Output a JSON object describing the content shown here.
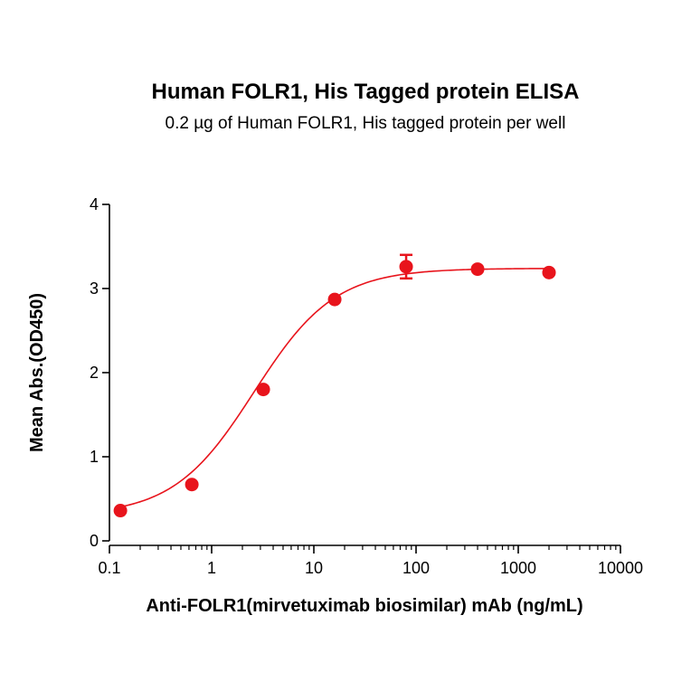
{
  "chart_data": {
    "type": "scatter",
    "title": "Human FOLR1, His Tagged protein ELISA",
    "subtitle": "0.2 µg of Human FOLR1, His tagged protein per well",
    "xlabel": "Anti-FOLR1(mirvetuximab biosimilar) mAb (ng/mL)",
    "ylabel": "Mean Abs.(OD450)",
    "x_scale": "log",
    "xlim": [
      0.1,
      10000
    ],
    "ylim": [
      0,
      4
    ],
    "x_ticks": [
      0.1,
      1,
      10,
      100,
      1000,
      10000
    ],
    "x_tick_labels": [
      "0.1",
      "1",
      "10",
      "100",
      "1000",
      "10000"
    ],
    "y_ticks": [
      0,
      1,
      2,
      3,
      4
    ],
    "y_tick_labels": [
      "0",
      "1",
      "2",
      "3",
      "4"
    ],
    "grid": false,
    "legend": "none",
    "color": "#e8141c",
    "series": [
      {
        "x": [
          0.128,
          0.64,
          3.2,
          16,
          80,
          400,
          2000
        ],
        "y": [
          0.36,
          0.67,
          1.8,
          2.87,
          3.26,
          3.23,
          3.19
        ],
        "error": [
          0.0,
          0.0,
          0.0,
          0.0,
          0.14,
          0.0,
          0.0
        ],
        "fit": "four-parameter logistic sigmoid curve"
      }
    ]
  }
}
